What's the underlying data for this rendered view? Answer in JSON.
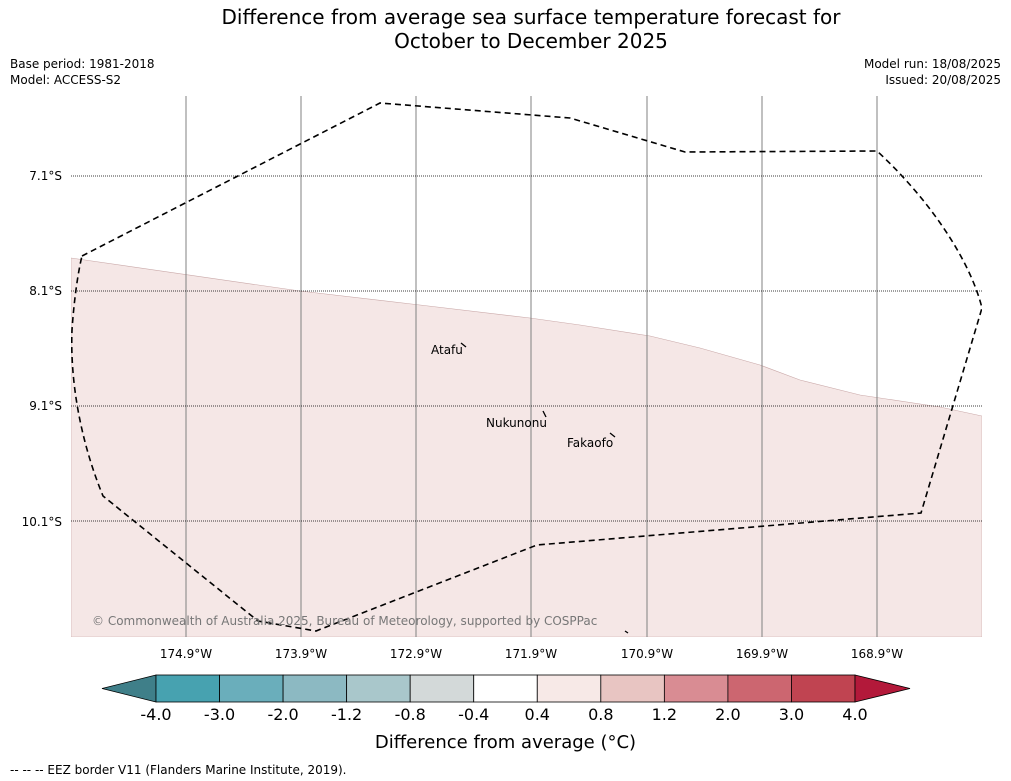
{
  "title_line1": "Difference from average sea surface temperature forecast for",
  "title_line2": "October to December 2025",
  "meta": {
    "base_period": "Base period: 1981-2018",
    "model": "Model: ACCESS-S2",
    "model_run": "Model run: 18/08/2025",
    "issued": "Issued: 20/08/2025"
  },
  "map": {
    "latitude_labels": [
      "7.1°S",
      "8.1°S",
      "9.1°S",
      "10.1°S"
    ],
    "longitude_labels": [
      "174.9°W",
      "173.9°W",
      "172.9°W",
      "171.9°W",
      "170.9°W",
      "169.9°W",
      "168.9°W"
    ],
    "islands": [
      "Atafu",
      "Nukunonu",
      "Fakaofo"
    ],
    "anomaly_fill_color": "#f5e7e6",
    "copyright": "© Commonwealth of Australia 2025, Bureau of Meteorology, supported by COSPPac"
  },
  "colorbar": {
    "ticks": [
      "-4.0",
      "-3.0",
      "-2.0",
      "-1.2",
      "-0.8",
      "-0.4",
      "0.4",
      "0.8",
      "1.2",
      "2.0",
      "3.0",
      "4.0"
    ],
    "colors": [
      "#3f7f89",
      "#47a2b0",
      "#6aaebb",
      "#8cb9c2",
      "#a9c7cb",
      "#d3d9d9",
      "#ffffff",
      "#f7e9e7",
      "#e8c5c2",
      "#d98c93",
      "#cc6670",
      "#c04451",
      "#b3193a"
    ],
    "label": "Difference from average (°C)"
  },
  "footer": "--  --  -- EEZ border V11 (Flanders Marine Institute, 2019)."
}
